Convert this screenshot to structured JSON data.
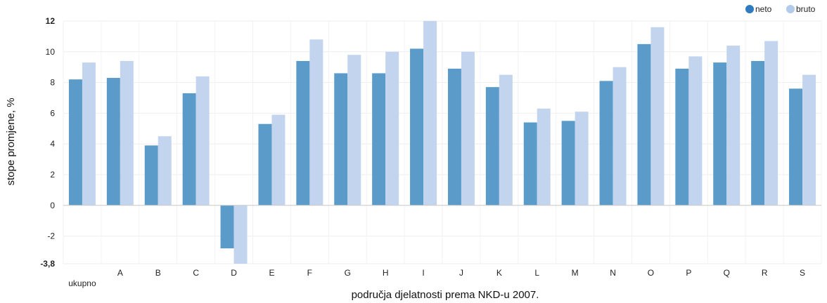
{
  "chart_data": {
    "type": "bar",
    "categories": [
      "ukupno",
      "A",
      "B",
      "C",
      "D",
      "E",
      "F",
      "G",
      "H",
      "I",
      "J",
      "K",
      "L",
      "M",
      "N",
      "O",
      "P",
      "Q",
      "R",
      "S"
    ],
    "series": [
      {
        "name": "neto",
        "color": "#5b9bc9",
        "legend_color": "#2e7bbf",
        "values": [
          8.2,
          8.3,
          3.9,
          7.3,
          -2.8,
          5.3,
          9.4,
          8.6,
          8.6,
          10.2,
          8.9,
          7.7,
          5.4,
          5.5,
          8.1,
          10.5,
          8.9,
          9.3,
          9.4,
          7.6
        ]
      },
      {
        "name": "bruto",
        "color": "#c3d5ee",
        "legend_color": "#b3cbea",
        "values": [
          9.3,
          9.4,
          4.5,
          8.4,
          -3.8,
          5.9,
          10.8,
          9.8,
          10.0,
          12.0,
          10.0,
          8.5,
          6.3,
          6.1,
          9.0,
          11.6,
          9.7,
          10.4,
          10.7,
          8.5
        ]
      }
    ],
    "ylim": [
      -3.8,
      12
    ],
    "yticks": [
      "12",
      "10",
      "8",
      "6",
      "4",
      "2",
      "0",
      "-2",
      "-3,8"
    ],
    "ytick_values": [
      12,
      10,
      8,
      6,
      4,
      2,
      0,
      -2,
      -3.8
    ],
    "xlabel": "područja djelatnosti prema NKD-u 2007.",
    "ylabel": "stope promjene, %",
    "legend_position": "top-right",
    "grid": true
  }
}
